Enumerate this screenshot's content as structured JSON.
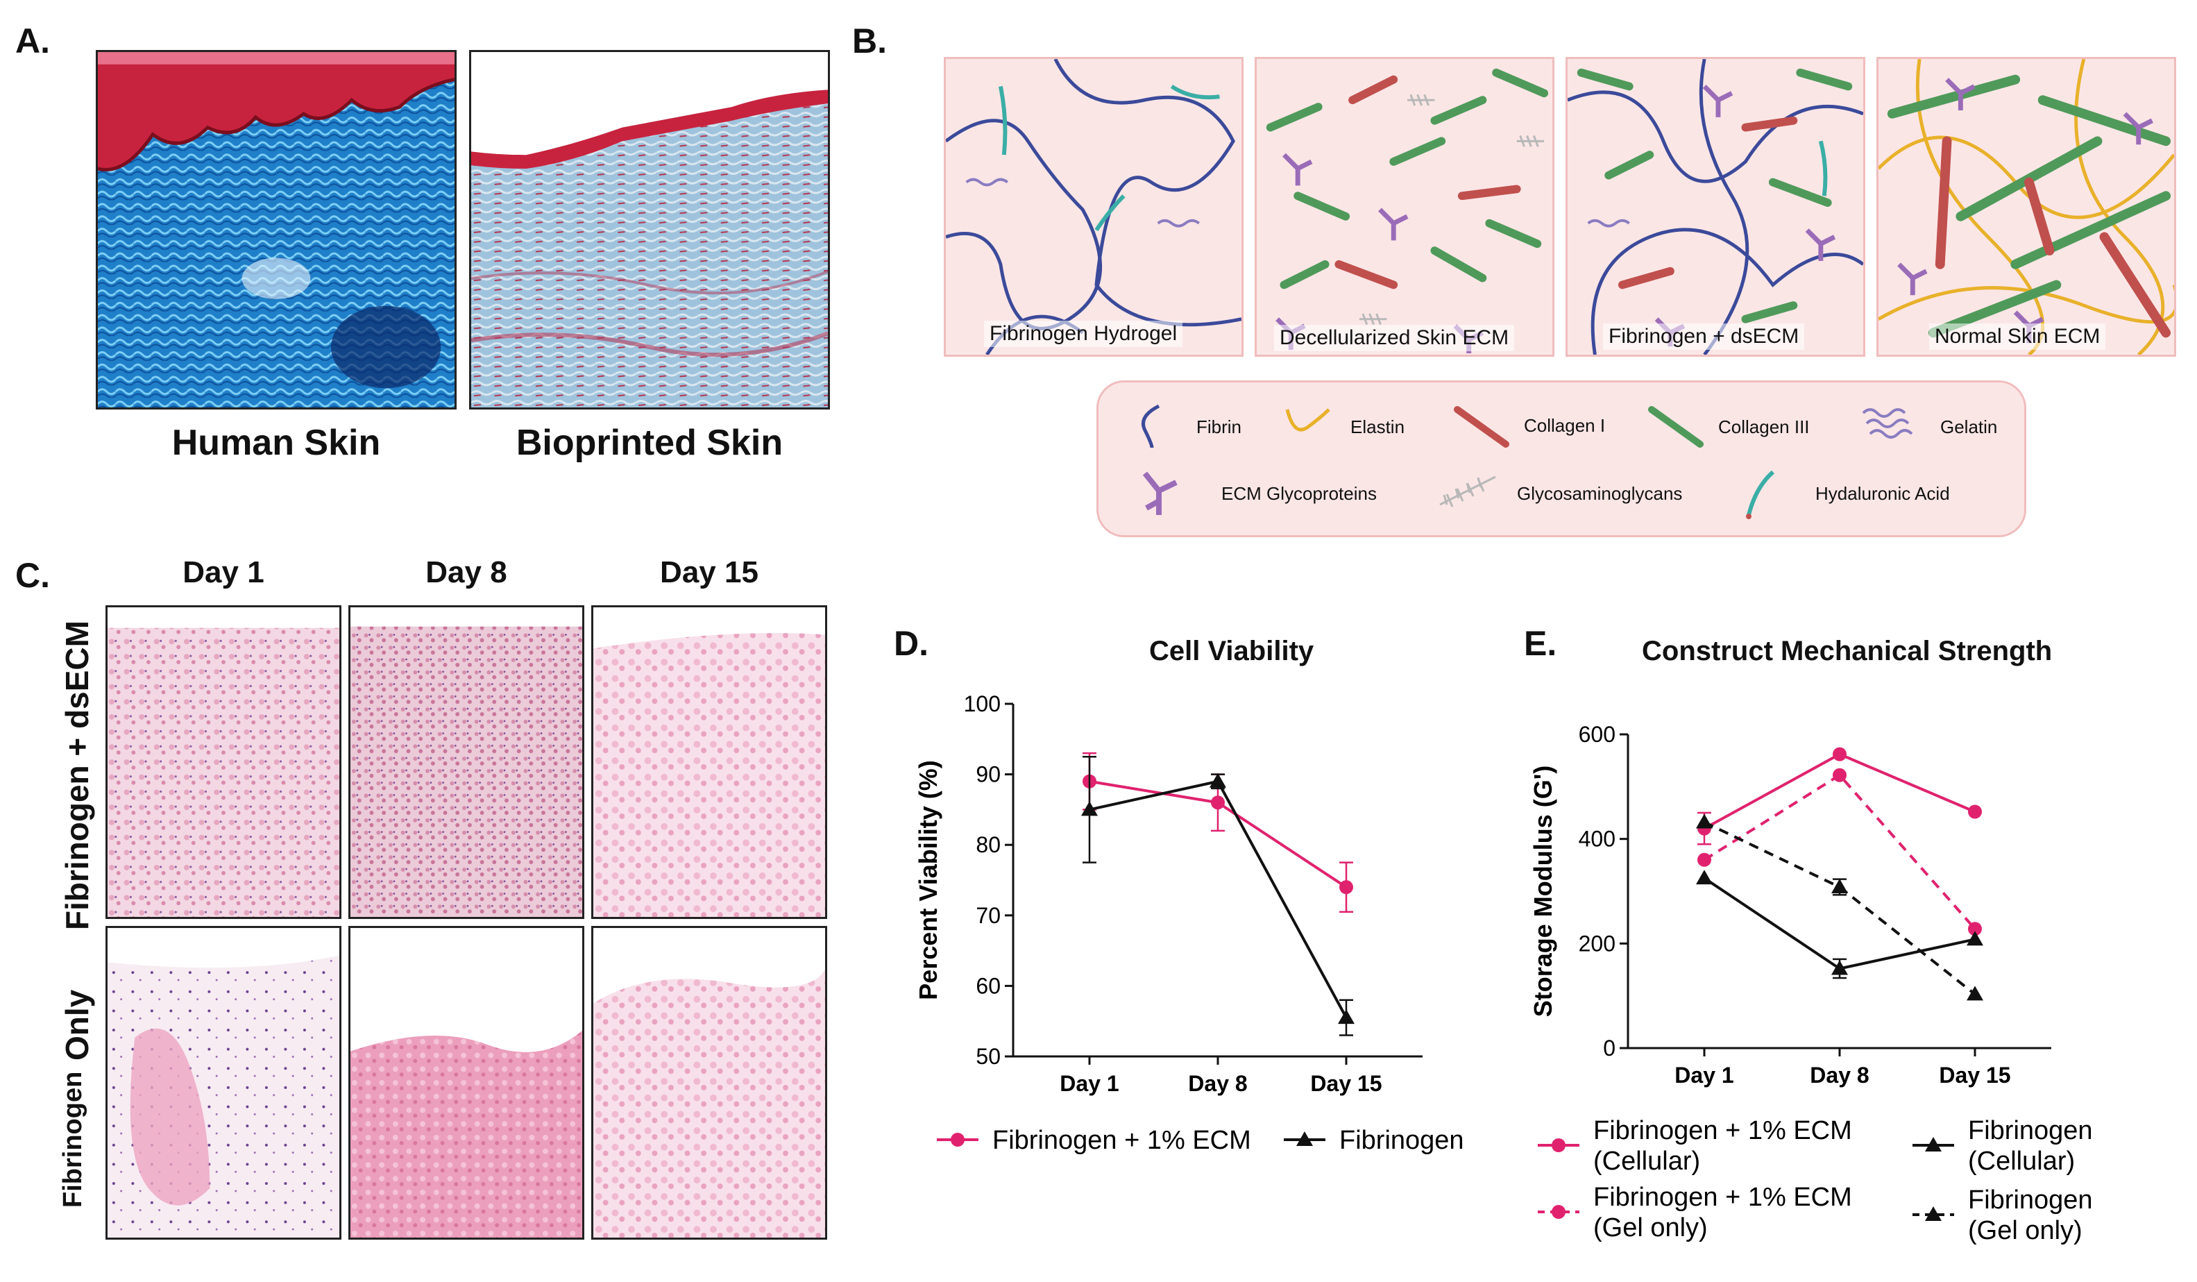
{
  "panel_labels": {
    "a": "A.",
    "b": "B.",
    "c": "C.",
    "d": "D.",
    "e": "E."
  },
  "panel_a": {
    "left_caption": "Human Skin",
    "right_caption": "Bioprinted Skin"
  },
  "panel_b": {
    "panels": [
      "Fibrinogen Hydrogel",
      "Decellularized Skin ECM",
      "Fibrinogen + dsECM",
      "Normal Skin ECM"
    ],
    "legend": [
      "Fibrin",
      "Elastin",
      "Collagen I",
      "Collagen III",
      "Gelatin",
      "ECM Glycoproteins",
      "Glycosaminoglycans",
      "Hydaluronic Acid"
    ],
    "colors": {
      "fibrin": "#3b4a9a",
      "elastin": "#e8b12a",
      "collagen_i": "#c0504d",
      "collagen_iii": "#4f9a5a",
      "gelatin": "#8a7cc0",
      "glycoprotein": "#9a6cb8",
      "gag": "#b8b8b8",
      "ha": "#3aaea6"
    }
  },
  "panel_c": {
    "days": [
      "Day 1",
      "Day 8",
      "Day 15"
    ],
    "row1": "Fibrinogen + dsECM",
    "row2a": "Fibrinogen",
    "row2b": "Only"
  },
  "chart_data": [
    {
      "type": "line",
      "title": "Cell Viability",
      "ylabel": "Percent Viability (%)",
      "xlabel": "",
      "categories": [
        "Day 1",
        "Day 8",
        "Day 15"
      ],
      "ylim": [
        50,
        100
      ],
      "yticks": [
        50,
        60,
        70,
        80,
        90,
        100
      ],
      "legend_position": "bottom",
      "series": [
        {
          "name": "Fibrinogen + 1% ECM",
          "color": "#e0226e",
          "marker": "circle",
          "dash": false,
          "values": [
            89,
            86,
            74
          ],
          "err": [
            4,
            4,
            3.5
          ]
        },
        {
          "name": "Fibrinogen",
          "color": "#111111",
          "marker": "triangle",
          "dash": false,
          "values": [
            85,
            89,
            55.5
          ],
          "err": [
            7.5,
            1,
            2.5
          ]
        }
      ]
    },
    {
      "type": "line",
      "title": "Construct Mechanical Strength",
      "ylabel": "Storage Modulus (G')",
      "xlabel": "",
      "categories": [
        "Day 1",
        "Day 8",
        "Day 15"
      ],
      "ylim": [
        0,
        600
      ],
      "yticks": [
        0,
        200,
        400,
        600
      ],
      "legend_position": "bottom",
      "series": [
        {
          "name": "Fibrinogen + 1% ECM\n(Cellular)",
          "color": "#e0226e",
          "marker": "circle",
          "dash": false,
          "values": [
            420,
            562,
            452
          ],
          "err": [
            30,
            0,
            0
          ]
        },
        {
          "name": "Fibrinogen + 1% ECM\n(Gel only)",
          "color": "#e0226e",
          "marker": "circle",
          "dash": true,
          "values": [
            360,
            522,
            228
          ],
          "err": [
            0,
            0,
            0
          ]
        },
        {
          "name": "Fibrinogen\n(Cellular)",
          "color": "#111111",
          "marker": "triangle",
          "dash": false,
          "values": [
            325,
            152,
            208
          ],
          "err": [
            0,
            18,
            0
          ]
        },
        {
          "name": "Fibrinogen\n(Gel only)",
          "color": "#111111",
          "marker": "triangle",
          "dash": true,
          "values": [
            432,
            308,
            103
          ],
          "err": [
            0,
            15,
            0
          ]
        }
      ]
    }
  ]
}
